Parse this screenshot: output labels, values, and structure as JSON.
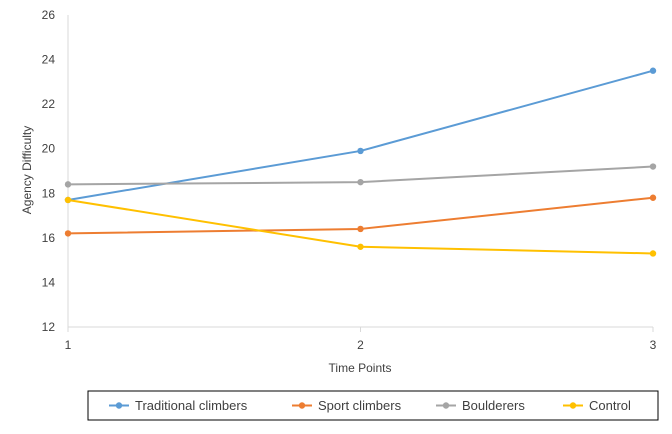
{
  "chart_data": {
    "type": "line",
    "title": "",
    "xlabel": "Time Points",
    "ylabel": "Agency Difficulty",
    "categories": [
      "1",
      "2",
      "3"
    ],
    "ylim": [
      12,
      26
    ],
    "yticks": [
      12,
      14,
      16,
      18,
      20,
      22,
      24,
      26
    ],
    "grid": false,
    "legend_position": "bottom",
    "series": [
      {
        "name": "Traditional climbers",
        "color": "#5b9bd5",
        "values": [
          17.7,
          19.9,
          23.5
        ]
      },
      {
        "name": "Sport climbers",
        "color": "#ed7d31",
        "values": [
          16.2,
          16.4,
          17.8
        ]
      },
      {
        "name": "Boulderers",
        "color": "#a5a5a5",
        "values": [
          18.4,
          18.5,
          19.2
        ]
      },
      {
        "name": "Control",
        "color": "#ffc000",
        "values": [
          17.7,
          15.6,
          15.3
        ]
      }
    ]
  }
}
